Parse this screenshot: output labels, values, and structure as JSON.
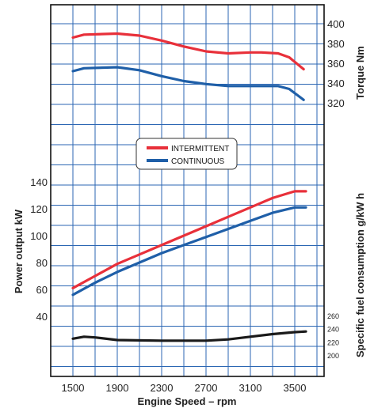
{
  "chart_data": {
    "type": "line",
    "x_axis": {
      "label": "Engine Speed – rpm",
      "range": [
        1400,
        3650
      ],
      "ticks": [
        1500,
        1900,
        2300,
        2700,
        3100,
        3500
      ],
      "tick_labels": [
        "1500",
        "1900",
        "2300",
        "2700",
        "3100",
        "3500"
      ]
    },
    "grid": true,
    "legend": {
      "placement": "center",
      "entries": [
        {
          "label": "INTERMITTENT",
          "color": "#e8303a"
        },
        {
          "label": "CONTINUOUS",
          "color": "#1f5fa8"
        }
      ]
    },
    "panels": [
      {
        "name": "torque",
        "ylabel": "Torque Nm",
        "axis_side": "right",
        "ylim": [
          300,
          410
        ],
        "ticks": [
          320,
          340,
          360,
          380,
          400
        ],
        "tick_labels": [
          "320",
          "340",
          "360",
          "380",
          "400"
        ],
        "series": [
          {
            "name": "INTERMITTENT",
            "color": "#e8303a",
            "x": [
              1500,
              1600,
              1900,
              2100,
              2300,
              2500,
              2700,
              2900,
              3100,
              3200,
              3350,
              3450,
              3580
            ],
            "y": [
              386,
              389,
              390,
              388,
              383,
              377,
              372,
              370,
              371,
              371,
              370,
              366,
              354
            ]
          },
          {
            "name": "CONTINUOUS",
            "color": "#1f5fa8",
            "x": [
              1500,
              1600,
              1900,
              2100,
              2300,
              2500,
              2700,
              2900,
              3100,
              3200,
              3350,
              3450,
              3580
            ],
            "y": [
              352,
              355,
              356,
              353,
              347,
              342,
              339,
              337,
              337,
              337,
              337,
              334,
              323
            ]
          }
        ]
      },
      {
        "name": "power",
        "ylabel": "Power output kW",
        "axis_side": "left",
        "ylim": [
          20,
          150
        ],
        "ticks": [
          40,
          60,
          80,
          100,
          120,
          140
        ],
        "tick_labels": [
          "40",
          "60",
          "80",
          "100",
          "120",
          "140"
        ],
        "series": [
          {
            "name": "INTERMITTENT",
            "color": "#e8303a",
            "x": [
              1500,
              1700,
              1900,
              2100,
              2300,
              2500,
              2700,
              2900,
              3100,
              3300,
              3500,
              3600
            ],
            "y": [
              61,
              70,
              79,
              86,
              93,
              100,
              107,
              114,
              121,
              128,
              133,
              133
            ]
          },
          {
            "name": "CONTINUOUS",
            "color": "#1f5fa8",
            "x": [
              1500,
              1700,
              1900,
              2100,
              2300,
              2500,
              2700,
              2900,
              3100,
              3300,
              3500,
              3600
            ],
            "y": [
              56,
              65,
              73,
              80,
              87,
              93,
              99,
              105,
              111,
              117,
              121,
              121
            ]
          }
        ]
      },
      {
        "name": "specific_fuel_consumption",
        "ylabel": "Specific fuel consumption g/kW h",
        "axis_side": "right",
        "ylim": [
          180,
          270
        ],
        "ticks": [
          200,
          220,
          240,
          260
        ],
        "tick_labels": [
          "200",
          "220",
          "240",
          "260"
        ],
        "series": [
          {
            "name": "",
            "color": "#1a1a1a",
            "x": [
              1500,
              1600,
              1700,
              1900,
              2300,
              2700,
              2900,
              3100,
              3300,
              3500,
              3600
            ],
            "y": [
              226,
              229,
              228,
              224,
              223,
              223,
              225,
              229,
              233,
              236,
              237
            ]
          }
        ]
      }
    ]
  }
}
